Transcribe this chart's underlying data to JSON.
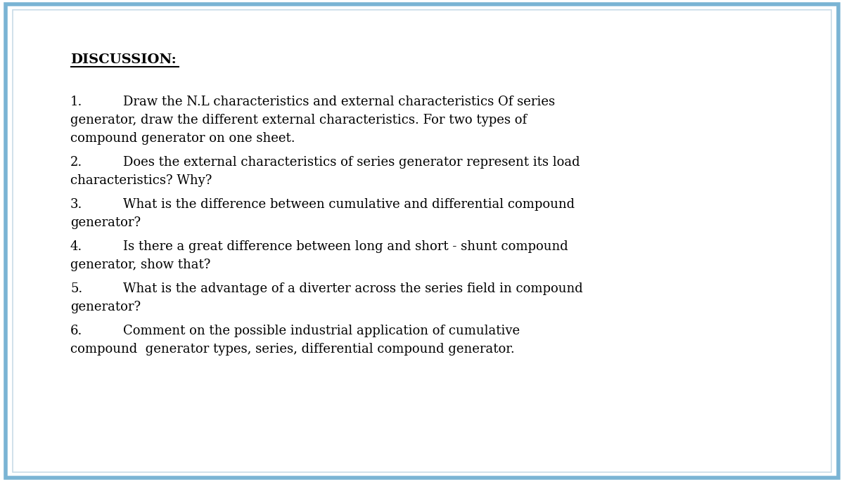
{
  "background_color": "#ffffff",
  "border_outer_color": "#7ab4d4",
  "border_inner_color": "#c8dce8",
  "title": "DISCUSSION:",
  "items": [
    {
      "number": "1.",
      "line1": "Draw the N.L characteristics and external characteristics Of series",
      "line2": "generator, draw the different external characteristics. For two types of",
      "line3": "compound generator on one sheet."
    },
    {
      "number": "2.",
      "line1": "Does the external characteristics of series generator represent its load",
      "line2": "characteristics? Why?",
      "line3": ""
    },
    {
      "number": "3.",
      "line1": "What is the difference between cumulative and differential compound",
      "line2": "generator?",
      "line3": ""
    },
    {
      "number": "4.",
      "line1": "Is there a great difference between long and short - shunt compound",
      "line2": "generator, show that?",
      "line3": ""
    },
    {
      "number": "5.",
      "line1": "What is the advantage of a diverter across the series field in compound",
      "line2": "generator?",
      "line3": ""
    },
    {
      "number": "6.",
      "line1": "Comment on the possible industrial application of cumulative",
      "line2": "compound  generator types, series, differential compound generator.",
      "line3": ""
    }
  ],
  "font_family": "DejaVu Serif",
  "title_fontsize": 14,
  "text_fontsize": 13,
  "fig_width": 12.0,
  "fig_height": 6.86,
  "dpi": 100
}
